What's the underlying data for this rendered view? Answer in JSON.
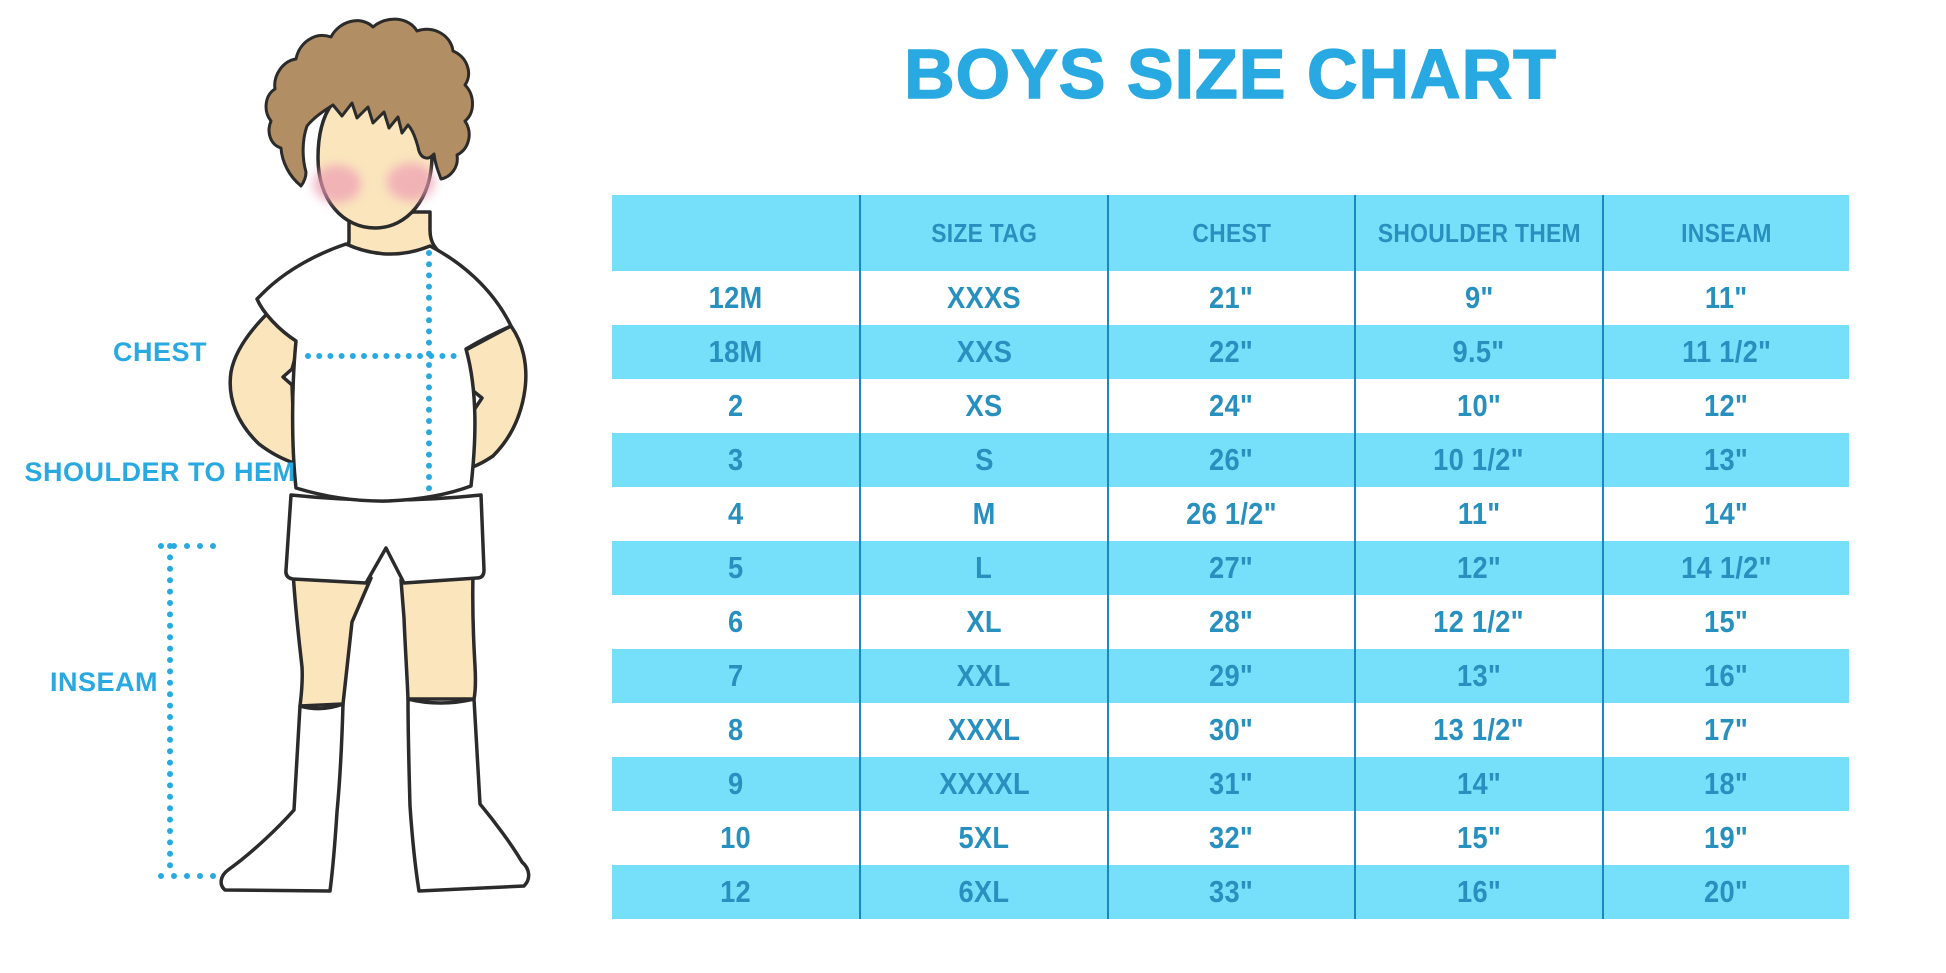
{
  "title": "BOYS SIZE CHART",
  "figure_labels": {
    "chest": "CHEST",
    "shoulder_to_hem": "SHOULDER TO HEM",
    "inseam": "INSEAM"
  },
  "table": {
    "columns": [
      "",
      "SIZE TAG",
      "CHEST",
      "SHOULDER THEM",
      "INSEAM"
    ],
    "rows": [
      [
        "12M",
        "XXXS",
        "21\"",
        "9\"",
        "11\""
      ],
      [
        "18M",
        "XXS",
        "22\"",
        "9.5\"",
        "11 1/2\""
      ],
      [
        "2",
        "XS",
        "24\"",
        "10\"",
        "12\""
      ],
      [
        "3",
        "S",
        "26\"",
        "10 1/2\"",
        "13\""
      ],
      [
        "4",
        "M",
        "26 1/2\"",
        "11\"",
        "14\""
      ],
      [
        "5",
        "L",
        "27\"",
        "12\"",
        "14 1/2\""
      ],
      [
        "6",
        "XL",
        "28\"",
        "12 1/2\"",
        "15\""
      ],
      [
        "7",
        "XXL",
        "29\"",
        "13\"",
        "16\""
      ],
      [
        "8",
        "XXXL",
        "30\"",
        "13 1/2\"",
        "17\""
      ],
      [
        "9",
        "XXXXL",
        "31\"",
        "14\"",
        "18\""
      ],
      [
        "10",
        "5XL",
        "32\"",
        "15\"",
        "19\""
      ],
      [
        "12",
        "6XL",
        "33\"",
        "16\"",
        "20\""
      ]
    ]
  },
  "colors": {
    "accent_blue": "#29A9E1",
    "table_text": "#2790BF",
    "stripe_bg": "#76E0FB",
    "divider": "#1989C6",
    "skin": "#FAE5BD",
    "hair": "#B28E64",
    "blush": "#EE9EB4",
    "outline": "#2B2B2B"
  }
}
